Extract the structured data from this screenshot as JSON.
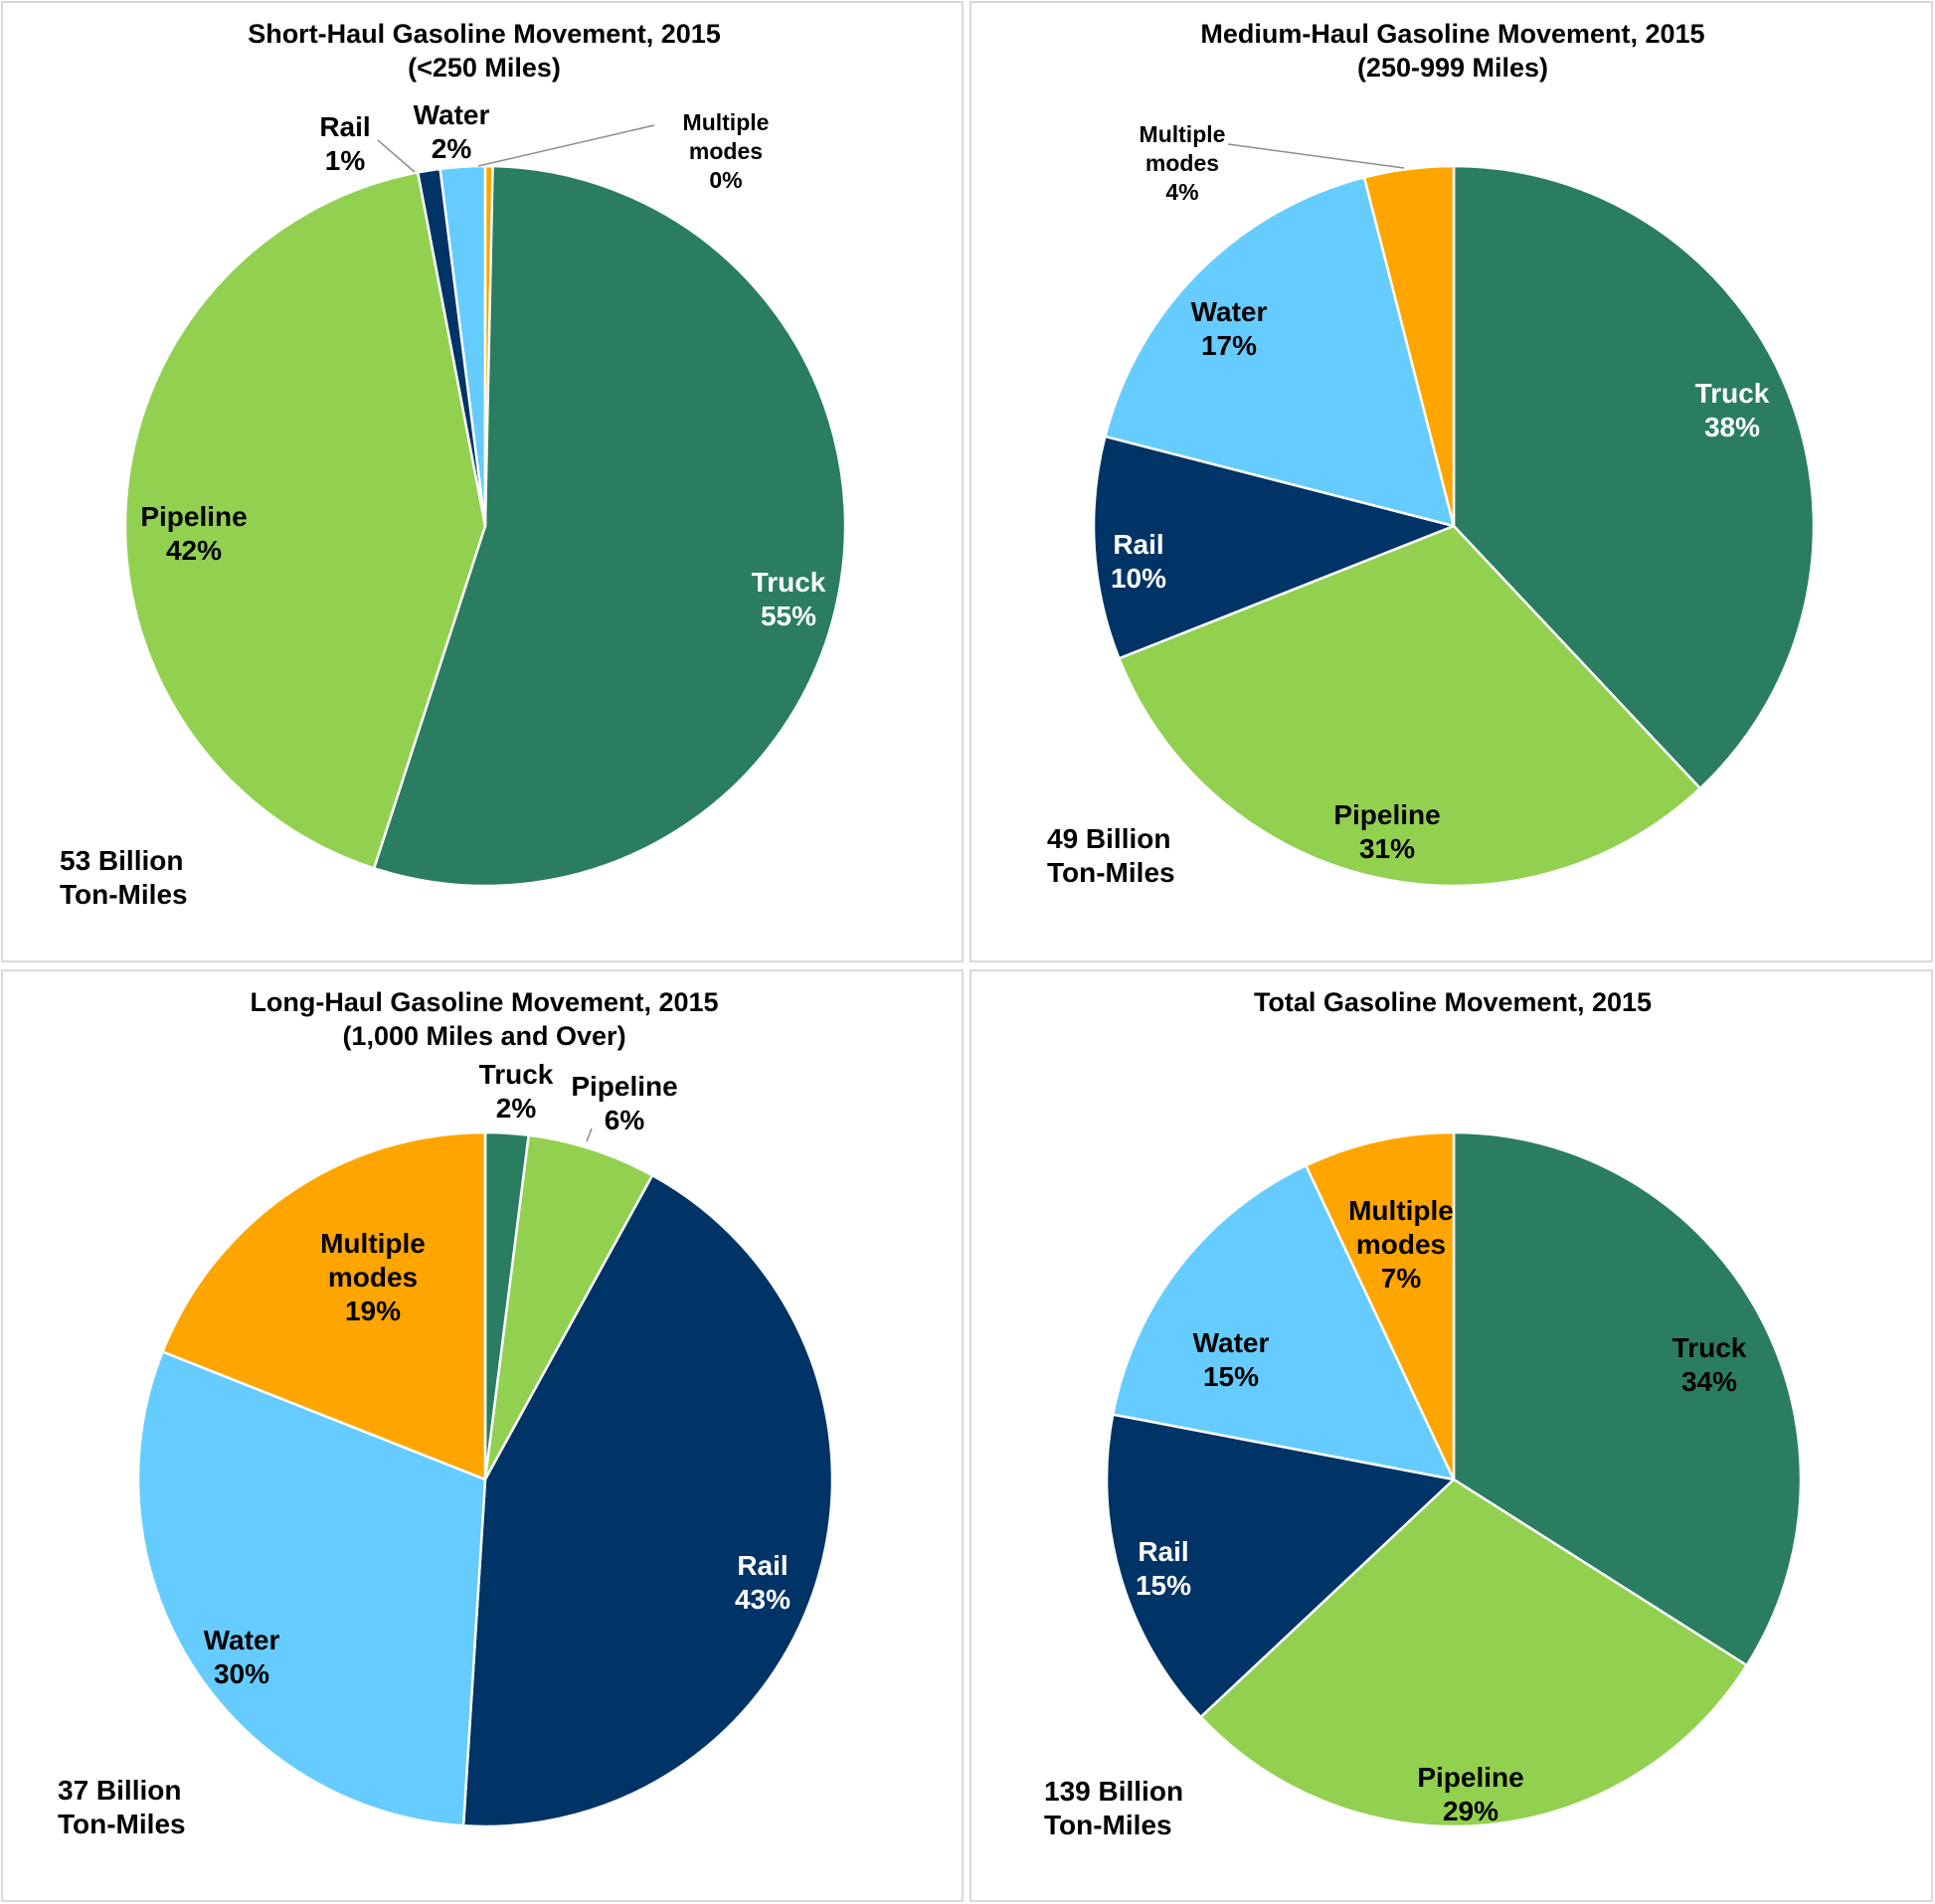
{
  "colors": {
    "Truck": "#2a7d60",
    "Pipeline": "#92d050",
    "Rail": "#003366",
    "Water": "#66ccff",
    "Multiple modes": "#ffa500"
  },
  "chart_data": [
    {
      "type": "pie",
      "title": [
        "Short-Haul Gasoline Movement, 2015",
        "(<250 Miles)"
      ],
      "total_label": [
        "53 Billion",
        "Ton-Miles"
      ],
      "slices": [
        {
          "name": "Truck",
          "display": [
            "Truck"
          ],
          "value": 55,
          "pct_label": "55%"
        },
        {
          "name": "Pipeline",
          "display": [
            "Pipeline"
          ],
          "value": 42,
          "pct_label": "42%"
        },
        {
          "name": "Rail",
          "display": [
            "Rail"
          ],
          "value": 1,
          "pct_label": "1%"
        },
        {
          "name": "Water",
          "display": [
            "Water"
          ],
          "value": 2,
          "pct_label": "2%"
        },
        {
          "name": "Multiple modes",
          "display": [
            "Multiple",
            "modes"
          ],
          "value": 0,
          "pct_label": "0%"
        }
      ]
    },
    {
      "type": "pie",
      "title": [
        "Medium-Haul Gasoline Movement, 2015",
        "(250-999 Miles)"
      ],
      "total_label": [
        "49 Billion",
        "Ton-Miles"
      ],
      "slices": [
        {
          "name": "Truck",
          "display": [
            "Truck"
          ],
          "value": 38,
          "pct_label": "38%"
        },
        {
          "name": "Pipeline",
          "display": [
            "Pipeline"
          ],
          "value": 31,
          "pct_label": "31%"
        },
        {
          "name": "Rail",
          "display": [
            "Rail"
          ],
          "value": 10,
          "pct_label": "10%"
        },
        {
          "name": "Water",
          "display": [
            "Water"
          ],
          "value": 17,
          "pct_label": "17%"
        },
        {
          "name": "Multiple modes",
          "display": [
            "Multiple",
            "modes"
          ],
          "value": 4,
          "pct_label": "4%"
        }
      ]
    },
    {
      "type": "pie",
      "title": [
        "Long-Haul Gasoline Movement, 2015",
        "(1,000 Miles and Over)"
      ],
      "total_label": [
        "37 Billion",
        "Ton-Miles"
      ],
      "slices": [
        {
          "name": "Truck",
          "display": [
            "Truck"
          ],
          "value": 2,
          "pct_label": "2%"
        },
        {
          "name": "Pipeline",
          "display": [
            "Pipeline"
          ],
          "value": 6,
          "pct_label": "6%"
        },
        {
          "name": "Rail",
          "display": [
            "Rail"
          ],
          "value": 43,
          "pct_label": "43%"
        },
        {
          "name": "Water",
          "display": [
            "Water"
          ],
          "value": 30,
          "pct_label": "30%"
        },
        {
          "name": "Multiple modes",
          "display": [
            "Multiple",
            "modes"
          ],
          "value": 19,
          "pct_label": "19%"
        }
      ]
    },
    {
      "type": "pie",
      "title": [
        "Total Gasoline Movement, 2015"
      ],
      "total_label": [
        "139 Billion",
        "Ton-Miles"
      ],
      "slices": [
        {
          "name": "Truck",
          "display": [
            "Truck"
          ],
          "value": 34,
          "pct_label": "34%"
        },
        {
          "name": "Pipeline",
          "display": [
            "Pipeline"
          ],
          "value": 29,
          "pct_label": "29%"
        },
        {
          "name": "Rail",
          "display": [
            "Rail"
          ],
          "value": 15,
          "pct_label": "15%"
        },
        {
          "name": "Water",
          "display": [
            "Water"
          ],
          "value": 15,
          "pct_label": "15%"
        },
        {
          "name": "Multiple modes",
          "display": [
            "Multiple",
            "modes"
          ],
          "value": 7,
          "pct_label": "7%"
        }
      ]
    }
  ]
}
